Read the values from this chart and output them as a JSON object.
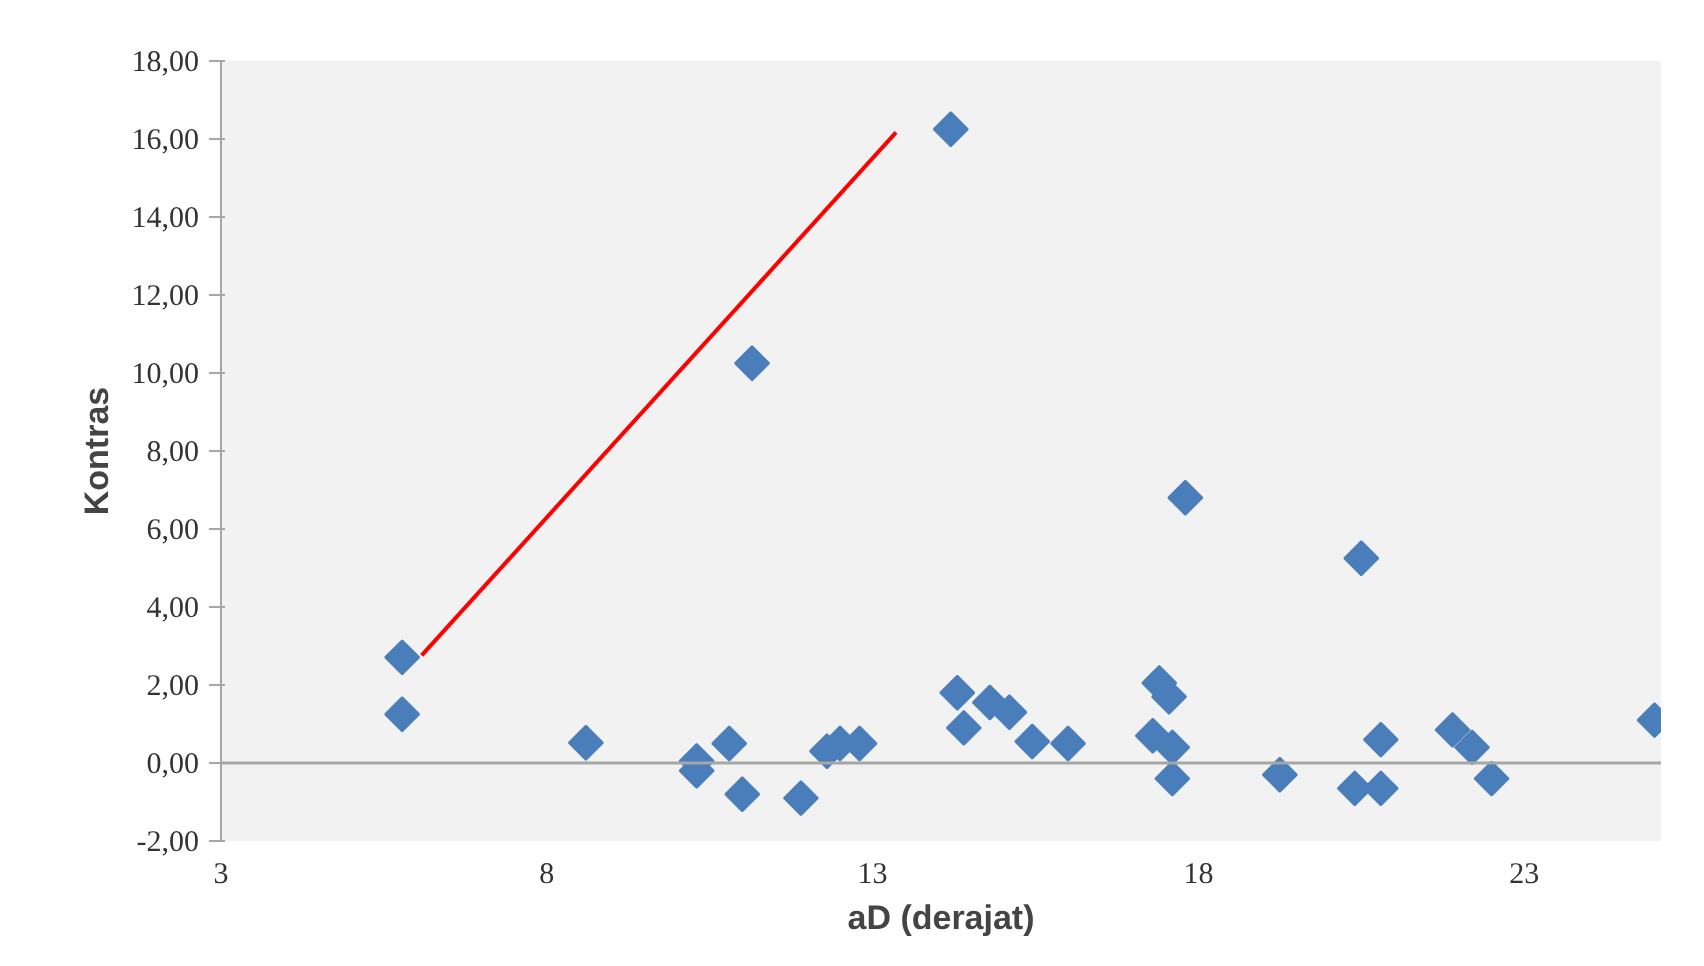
{
  "chart_data": {
    "type": "scatter",
    "xlabel": "aD (derajat)",
    "ylabel": "Kontras",
    "xlim": [
      3,
      25.1
    ],
    "ylim": [
      -2,
      18
    ],
    "xticks": [
      3,
      8,
      13,
      18,
      23
    ],
    "yticks": [
      {
        "value": -2,
        "label": "-2,00"
      },
      {
        "value": 0,
        "label": "0,00"
      },
      {
        "value": 2,
        "label": "2,00"
      },
      {
        "value": 4,
        "label": "4,00"
      },
      {
        "value": 6,
        "label": "6,00"
      },
      {
        "value": 8,
        "label": "8,00"
      },
      {
        "value": 10,
        "label": "10,00"
      },
      {
        "value": 12,
        "label": "12,00"
      },
      {
        "value": 14,
        "label": "14,00"
      },
      {
        "value": 16,
        "label": "16,00"
      },
      {
        "value": 18,
        "label": "18,00"
      }
    ],
    "grid": false,
    "ref_lines": [
      {
        "axis": "y",
        "value": 0,
        "color": "#a6a6a6"
      }
    ],
    "series": [
      {
        "marker": "diamond",
        "color": "#4a7ebb",
        "x": [
          5.78,
          5.78,
          8.6,
          10.3,
          10.3,
          10.8,
          11.0,
          11.15,
          11.9,
          12.3,
          12.5,
          12.8,
          14.2,
          14.3,
          14.4,
          14.8,
          15.1,
          15.45,
          16.0,
          17.4,
          17.55,
          17.3,
          17.6,
          17.6,
          17.8,
          19.25,
          20.4,
          20.8,
          20.5,
          20.8,
          21.9,
          22.2,
          22.5,
          25.0
        ],
        "values": [
          2.71,
          1.25,
          0.52,
          0.05,
          -0.2,
          0.5,
          -0.8,
          10.25,
          -0.9,
          0.3,
          0.5,
          0.5,
          16.25,
          1.8,
          0.9,
          1.55,
          1.3,
          0.55,
          0.5,
          2.05,
          1.7,
          0.7,
          0.4,
          -0.4,
          6.8,
          -0.3,
          -0.65,
          -0.65,
          5.25,
          0.6,
          0.85,
          0.4,
          -0.4,
          1.1
        ]
      },
      {
        "type": "line",
        "color": "#ff0000",
        "x": [
          6.08,
          13.36
        ],
        "values": [
          2.76,
          16.17
        ]
      }
    ]
  }
}
